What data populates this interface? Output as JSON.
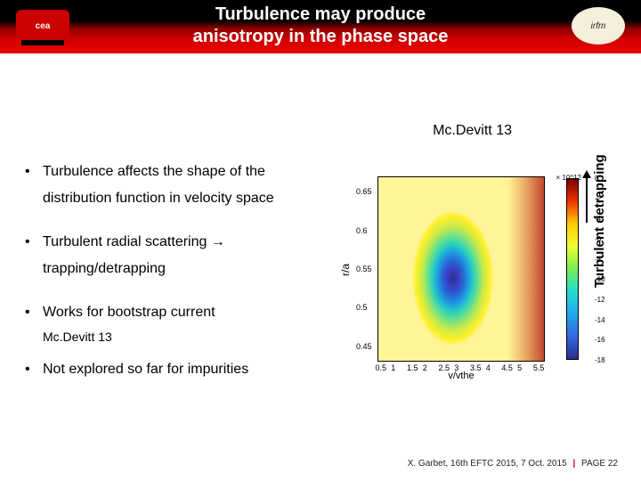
{
  "header": {
    "title_line1": "Turbulence may produce",
    "title_line2": "anisotropy in the phase space",
    "logo_left_text": "cea",
    "logo_right_text": "irfm",
    "bg_gradient": [
      "#000000",
      "#8b0000",
      "#cc0000",
      "#ee0000"
    ]
  },
  "reference_top": "Mc.Devitt 13",
  "bullets": [
    "Turbulence affects the shape of the distribution function in velocity space",
    "Turbulent radial scattering → trapping/detrapping",
    "Works for bootstrap current",
    "Not explored so far for impurities"
  ],
  "sub_reference": "Mc.Devitt 13",
  "vertical_label": "Turbulent detrapping",
  "chart": {
    "type": "heatmap-contour",
    "xlabel": "v/vthe",
    "ylabel": "r/a",
    "xlim": [
      0.4,
      5.7
    ],
    "ylim": [
      0.43,
      0.67
    ],
    "xticks": [
      0.5,
      1,
      1.5,
      2,
      2.5,
      3,
      3.5,
      4,
      4.5,
      5,
      5.5
    ],
    "yticks": [
      0.45,
      0.5,
      0.55,
      0.6,
      0.65
    ],
    "colorbar": {
      "exponent": "× 10^12",
      "ticks": [
        0,
        -2,
        -4,
        -6,
        -8,
        -10,
        -12,
        -14,
        -16,
        -18
      ],
      "gradient": [
        "#7d0000",
        "#ee3300",
        "#ffcc00",
        "#eeff33",
        "#77ee55",
        "#22ddcc",
        "#22aaee",
        "#3366dd",
        "#2b2f8f"
      ]
    },
    "background_color": "#fff598",
    "title_fontsize": 12,
    "tick_fontsize": 9
  },
  "footer": {
    "author": "X. Garbet, 16th EFTC 2015, 7 Oct. 2015",
    "page": "PAGE 22"
  },
  "colors": {
    "accent": "#cc0000",
    "text": "#000000",
    "bg": "#ffffff"
  }
}
